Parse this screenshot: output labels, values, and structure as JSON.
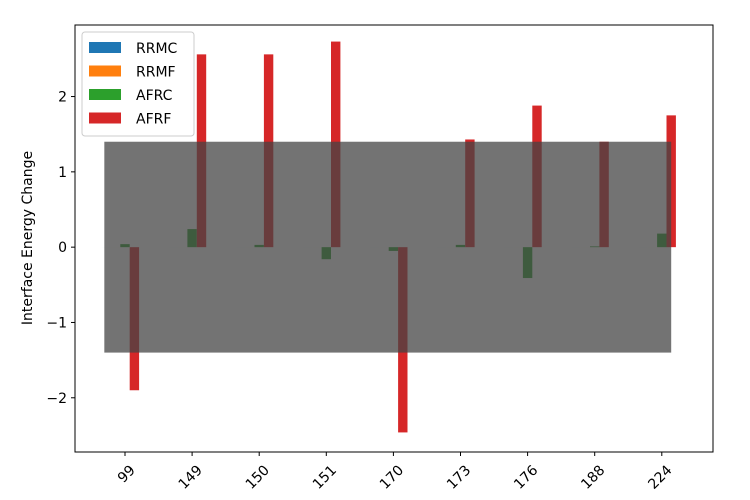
{
  "chart_data": {
    "type": "bar",
    "title": "",
    "xlabel": "",
    "ylabel": "Interface Energy Change",
    "categories": [
      "99",
      "149",
      "150",
      "151",
      "170",
      "173",
      "176",
      "188",
      "224"
    ],
    "ylim": [
      -2.72,
      2.95
    ],
    "yticks": [
      -2,
      -1,
      0,
      1,
      2
    ],
    "ytick_labels": [
      "−2",
      "−1",
      "0",
      "1",
      "2"
    ],
    "grid": false,
    "legend_position": "top-left",
    "series": [
      {
        "name": "RRMC",
        "color": "#1f77b4",
        "values": [
          0,
          0,
          0,
          0,
          0,
          0,
          0,
          0,
          0
        ]
      },
      {
        "name": "RRMF",
        "color": "#ff7f0e",
        "values": [
          0,
          0,
          0,
          0,
          0,
          0,
          0,
          0,
          0
        ]
      },
      {
        "name": "AFRC",
        "color": "#2ca02c",
        "values": [
          0.04,
          0.24,
          0.03,
          -0.16,
          -0.05,
          0.03,
          -0.41,
          0.01,
          0.18
        ]
      },
      {
        "name": "AFRF",
        "color": "#d62728",
        "values": [
          -1.9,
          2.56,
          2.56,
          2.73,
          -2.46,
          1.43,
          1.88,
          1.4,
          1.75
        ]
      }
    ],
    "shaded_band": {
      "y_min": -1.4,
      "y_max": 1.4,
      "color": "#444444",
      "opacity": 0.75
    }
  }
}
